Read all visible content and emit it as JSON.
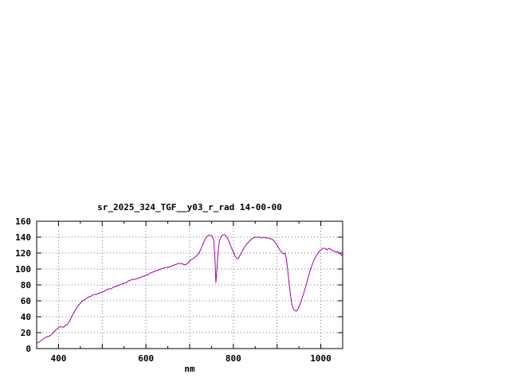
{
  "window": {
    "background": "#ffffff"
  },
  "chart": {
    "title": "sr_2025_324_TGF__y03_r_rad 14-00-00",
    "xlabel": "nm"
  },
  "chart_data": {
    "type": "line",
    "title": "sr_2025_324_TGF__y03_r_rad 14-00-00",
    "xlabel": "nm",
    "ylabel": "",
    "xlim": [
      350,
      1050
    ],
    "ylim": [
      0,
      160
    ],
    "grid": true,
    "legend": "none",
    "x_tick_labels": [
      400,
      600,
      800,
      1000
    ],
    "x_gridlines": [
      400,
      500,
      600,
      700,
      800,
      900,
      1000
    ],
    "x_minor_ticks": [
      450,
      550,
      650,
      750,
      850,
      950
    ],
    "y_tick_labels": [
      0,
      20,
      40,
      60,
      80,
      100,
      120,
      140,
      160
    ],
    "y_gridlines": [
      20,
      40,
      60,
      80,
      100,
      120,
      140
    ],
    "line_color": "#a000a0",
    "grid_color": "#777777",
    "axis_color": "#000000",
    "series": [
      {
        "name": "sr_2025_324_TGF__y03_r_rad",
        "points": [
          [
            350,
            7
          ],
          [
            355,
            8
          ],
          [
            360,
            10
          ],
          [
            365,
            12
          ],
          [
            370,
            14
          ],
          [
            375,
            15
          ],
          [
            380,
            16
          ],
          [
            385,
            18
          ],
          [
            390,
            21
          ],
          [
            395,
            24
          ],
          [
            400,
            26
          ],
          [
            405,
            28
          ],
          [
            408,
            27
          ],
          [
            412,
            27
          ],
          [
            416,
            29
          ],
          [
            420,
            30
          ],
          [
            425,
            34
          ],
          [
            430,
            40
          ],
          [
            435,
            45
          ],
          [
            440,
            50
          ],
          [
            445,
            54
          ],
          [
            450,
            57
          ],
          [
            455,
            60
          ],
          [
            458,
            61
          ],
          [
            462,
            62
          ],
          [
            466,
            64
          ],
          [
            470,
            65
          ],
          [
            475,
            66
          ],
          [
            480,
            68
          ],
          [
            485,
            68
          ],
          [
            490,
            69
          ],
          [
            495,
            70
          ],
          [
            500,
            71
          ],
          [
            505,
            72
          ],
          [
            510,
            74
          ],
          [
            515,
            75
          ],
          [
            520,
            75
          ],
          [
            525,
            77
          ],
          [
            530,
            78
          ],
          [
            535,
            79
          ],
          [
            540,
            80
          ],
          [
            545,
            81
          ],
          [
            550,
            82
          ],
          [
            555,
            83
          ],
          [
            560,
            85
          ],
          [
            565,
            86
          ],
          [
            570,
            87
          ],
          [
            575,
            87
          ],
          [
            580,
            88
          ],
          [
            585,
            89
          ],
          [
            590,
            90
          ],
          [
            595,
            91
          ],
          [
            600,
            92
          ],
          [
            605,
            93
          ],
          [
            610,
            95
          ],
          [
            615,
            96
          ],
          [
            620,
            97
          ],
          [
            625,
            98
          ],
          [
            630,
            99
          ],
          [
            635,
            100
          ],
          [
            640,
            101
          ],
          [
            645,
            102
          ],
          [
            650,
            102
          ],
          [
            655,
            103
          ],
          [
            660,
            104
          ],
          [
            665,
            105
          ],
          [
            670,
            106
          ],
          [
            675,
            107
          ],
          [
            680,
            107
          ],
          [
            685,
            106
          ],
          [
            690,
            105
          ],
          [
            695,
            107
          ],
          [
            700,
            110
          ],
          [
            705,
            112
          ],
          [
            710,
            114
          ],
          [
            715,
            116
          ],
          [
            720,
            119
          ],
          [
            725,
            124
          ],
          [
            730,
            131
          ],
          [
            735,
            137
          ],
          [
            740,
            141
          ],
          [
            745,
            143
          ],
          [
            748,
            142
          ],
          [
            752,
            141
          ],
          [
            755,
            136
          ],
          [
            758,
            112
          ],
          [
            760,
            83
          ],
          [
            762,
            96
          ],
          [
            765,
            122
          ],
          [
            768,
            135
          ],
          [
            772,
            141
          ],
          [
            776,
            143
          ],
          [
            780,
            143
          ],
          [
            784,
            141
          ],
          [
            788,
            137
          ],
          [
            792,
            132
          ],
          [
            796,
            126
          ],
          [
            800,
            121
          ],
          [
            804,
            116
          ],
          [
            808,
            113
          ],
          [
            812,
            114
          ],
          [
            816,
            118
          ],
          [
            820,
            122
          ],
          [
            825,
            127
          ],
          [
            830,
            131
          ],
          [
            835,
            134
          ],
          [
            840,
            137
          ],
          [
            845,
            139
          ],
          [
            850,
            140
          ],
          [
            855,
            140
          ],
          [
            860,
            140
          ],
          [
            865,
            139
          ],
          [
            870,
            140
          ],
          [
            875,
            139
          ],
          [
            880,
            139
          ],
          [
            885,
            138
          ],
          [
            890,
            137
          ],
          [
            895,
            134
          ],
          [
            900,
            130
          ],
          [
            905,
            125
          ],
          [
            910,
            121
          ],
          [
            914,
            119
          ],
          [
            918,
            120
          ],
          [
            921,
            113
          ],
          [
            924,
            100
          ],
          [
            927,
            85
          ],
          [
            930,
            70
          ],
          [
            933,
            58
          ],
          [
            936,
            51
          ],
          [
            940,
            48
          ],
          [
            944,
            47
          ],
          [
            948,
            50
          ],
          [
            952,
            55
          ],
          [
            956,
            61
          ],
          [
            960,
            68
          ],
          [
            965,
            77
          ],
          [
            970,
            87
          ],
          [
            975,
            97
          ],
          [
            980,
            105
          ],
          [
            985,
            112
          ],
          [
            990,
            117
          ],
          [
            995,
            121
          ],
          [
            1000,
            124
          ],
          [
            1005,
            126
          ],
          [
            1010,
            126
          ],
          [
            1014,
            124
          ],
          [
            1018,
            126
          ],
          [
            1022,
            125
          ],
          [
            1026,
            123
          ],
          [
            1030,
            123
          ],
          [
            1034,
            121
          ],
          [
            1038,
            122
          ],
          [
            1042,
            120
          ],
          [
            1046,
            118
          ],
          [
            1050,
            116
          ]
        ]
      }
    ]
  }
}
